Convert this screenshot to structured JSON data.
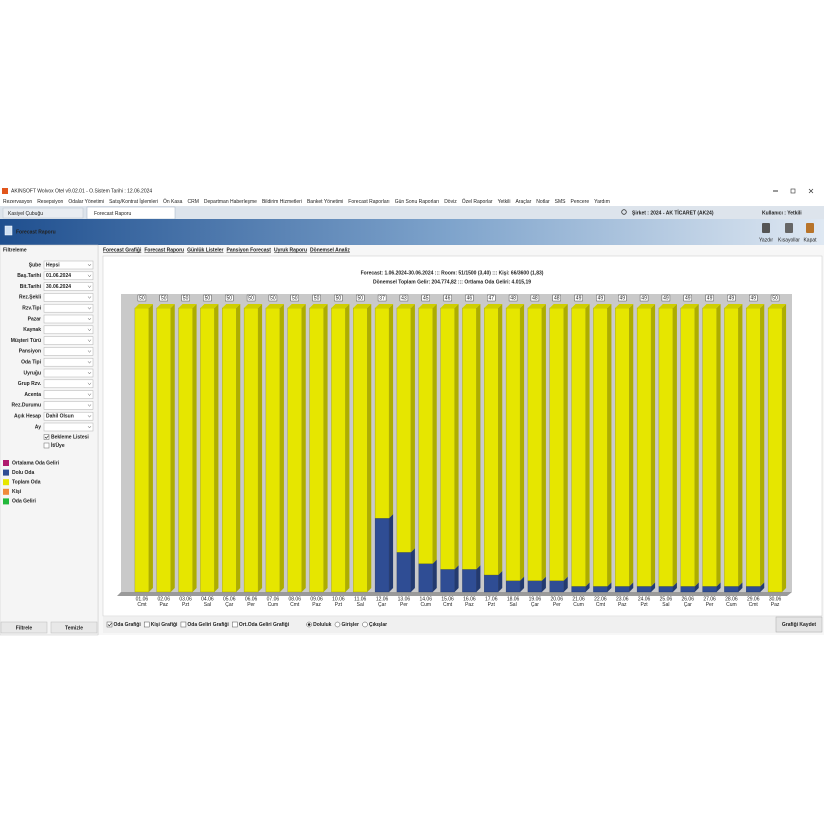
{
  "window": {
    "title": "AKINSOFT Wolvox Otel v9.02.01 - O.Sistem Tarihi : 12.06.2024",
    "menu": [
      "Rezervasyon",
      "Resepsiyon",
      "Odalar Yönetimi",
      "Satış/Kontrat İşlemleri",
      "Ön Kasa",
      "CRM",
      "Departman Haberleşme",
      "Bildirim Hizmetleri",
      "Banket Yönetimi",
      "Forecast Raporları",
      "Gün Sonu Raporları",
      "Döviz",
      "Özel Raporlar",
      "Yetkili",
      "Araçlar",
      "Notlar",
      "SMS",
      "Pencere",
      "Yardım"
    ],
    "tabs": [
      "Kasiyel Çubuğu",
      "Forecast Raporu"
    ],
    "company": "Şirket : 2024 - AK TİCARET (AK24)",
    "user": "Kullanıcı : Yetkili"
  },
  "header": {
    "title": "Forecast Raporu",
    "buttons": [
      "Yazdır",
      "Kısayollar",
      "Kapat"
    ]
  },
  "sidebar": {
    "title": "Filtreleme",
    "filters": [
      {
        "label": "Şube",
        "value": "Hepsi"
      },
      {
        "label": "Baş.Tarihi",
        "value": "01.06.2024"
      },
      {
        "label": "Bit.Tarihi",
        "value": "30.06.2024"
      },
      {
        "label": "Rez.Şekli"
      },
      {
        "label": "Rzv.Tipi"
      },
      {
        "label": "Pazar"
      },
      {
        "label": "Kaynak"
      },
      {
        "label": "Müşteri Türü"
      },
      {
        "label": "Pansiyon"
      },
      {
        "label": "Oda Tipi"
      },
      {
        "label": "Uyruğu"
      },
      {
        "label": "Grup Rzv."
      },
      {
        "label": "Acenta"
      },
      {
        "label": "Rez.Durumu"
      },
      {
        "label": "Açık Hesap",
        "value": "Dahil Olsun"
      },
      {
        "label": "Ay"
      }
    ],
    "checks": [
      {
        "label": "Bekleme Listesi",
        "checked": true
      },
      {
        "label": "İt/Üye",
        "checked": false
      }
    ],
    "legend_extra": [
      {
        "name": "Ortalama Oda Geliri",
        "color": "#b01a6e"
      },
      {
        "name": "Kişi",
        "color": "#f08a3a"
      },
      {
        "name": "Oda Geliri",
        "color": "#22b83a"
      }
    ],
    "buttons": [
      "Filtrele",
      "Temizle"
    ]
  },
  "subtabs": [
    "Forecast Grafiği",
    "Forecast Raporu",
    "Günlük Listeler",
    "Pansiyon Forecast",
    "Uyruk Raporu",
    "Dönemsel Analiz"
  ],
  "chart_data": {
    "type": "bar",
    "stacked": true,
    "title": "Forecast: 1.06.2024-30.06.2024  :::  Room: 51/1500 (3,40)  :::  Kişi: 66/3600 (1,83)",
    "subtitle": "Dönemsel Toplam Gelir: 204.774,82  :::  Ortlama Oda Geliri: 4.015,19",
    "categories": [
      "01.06",
      "02.06",
      "03.06",
      "04.06",
      "05.06",
      "06.06",
      "07.06",
      "08.06",
      "09.06",
      "10.06",
      "11.06",
      "12.06",
      "13.06",
      "14.06",
      "15.06",
      "16.06",
      "17.06",
      "18.06",
      "19.06",
      "20.06",
      "21.06",
      "22.06",
      "23.06",
      "24.06",
      "25.06",
      "26.06",
      "27.06",
      "28.06",
      "29.06",
      "30.06"
    ],
    "weekdays": [
      "Cmt",
      "Paz",
      "Pzt",
      "Sal",
      "Çar",
      "Per",
      "Cum",
      "Cmt",
      "Paz",
      "Pzt",
      "Sal",
      "Çar",
      "Per",
      "Cum",
      "Cmt",
      "Paz",
      "Pzt",
      "Sal",
      "Çar",
      "Per",
      "Cum",
      "Cmt",
      "Paz",
      "Pzt",
      "Sal",
      "Çar",
      "Per",
      "Cum",
      "Cmt",
      "Paz"
    ],
    "series": [
      {
        "name": "Dolu Oda",
        "color": "#2f4d94",
        "values": [
          0,
          0,
          0,
          0,
          0,
          0,
          0,
          0,
          0,
          0,
          0,
          13,
          7,
          5,
          4,
          4,
          3,
          2,
          2,
          2,
          1,
          1,
          1,
          1,
          1,
          1,
          1,
          1,
          1,
          0
        ]
      },
      {
        "name": "Toplam Oda",
        "color": "#e6e600",
        "values": [
          50,
          50,
          50,
          50,
          50,
          50,
          50,
          50,
          50,
          50,
          50,
          37,
          43,
          45,
          46,
          46,
          47,
          48,
          48,
          48,
          49,
          49,
          49,
          49,
          49,
          49,
          49,
          49,
          49,
          50
        ]
      }
    ],
    "ylim": [
      0,
      50
    ]
  },
  "options": {
    "checks": [
      {
        "label": "Oda Grafiği",
        "checked": true
      },
      {
        "label": "Kişi Grafiği",
        "checked": false
      },
      {
        "label": "Oda Geliri Grafiği",
        "checked": false
      },
      {
        "label": "Ort.Oda Geliri Grafiği",
        "checked": false
      }
    ],
    "radios": [
      {
        "label": "Doluluk",
        "selected": true
      },
      {
        "label": "Girişler",
        "selected": false
      },
      {
        "label": "Çıkışlar",
        "selected": false
      }
    ],
    "save": "Grafiği Kaydet"
  }
}
